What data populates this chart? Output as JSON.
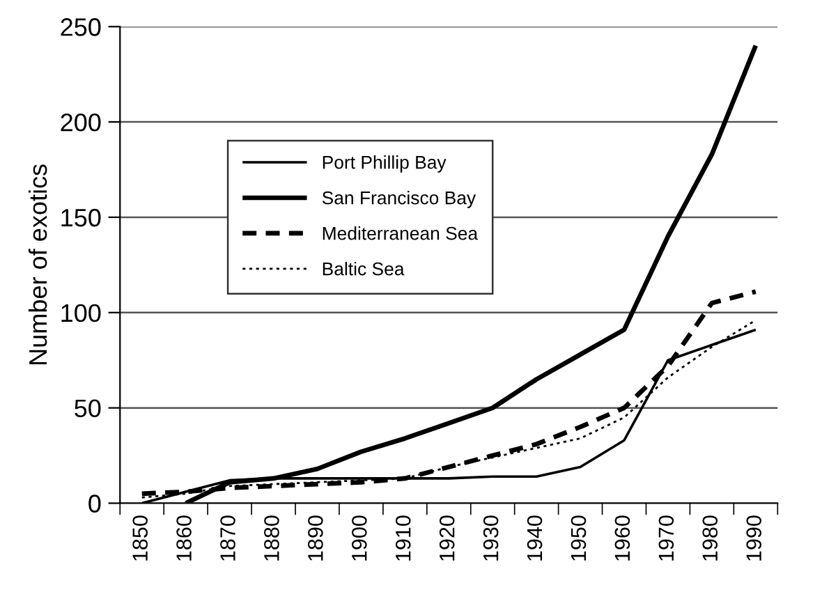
{
  "chart_data": {
    "type": "line",
    "ylabel": "Number of exotics",
    "categories": [
      "1850",
      "1860",
      "1870",
      "1880",
      "1890",
      "1900",
      "1910",
      "1920",
      "1930",
      "1940",
      "1950",
      "1960",
      "1970",
      "1980",
      "1990"
    ],
    "ylim": [
      0,
      250
    ],
    "yticks": [
      0,
      50,
      100,
      150,
      200,
      250
    ],
    "grid": "y",
    "legend": "top left",
    "marker": "none",
    "series": [
      {
        "name": "Port Phillip Bay",
        "color": "#000000",
        "line_style": "solid",
        "values": [
          0,
          6,
          12,
          13,
          13,
          13,
          13,
          13,
          14,
          14,
          19,
          33,
          75,
          83,
          91
        ]
      },
      {
        "name": "San Francisco Bay",
        "color": "#000000",
        "line_style": "solid",
        "values": [
          null,
          0,
          11,
          13,
          18,
          27,
          34,
          42,
          50,
          65,
          78,
          91,
          140,
          183,
          240
        ]
      },
      {
        "name": "Mediterranean Sea",
        "color": "#000000",
        "line_style": "dashed",
        "values": [
          5,
          6,
          8,
          9,
          10,
          11,
          13,
          19,
          25,
          31,
          40,
          50,
          72,
          105,
          111
        ]
      },
      {
        "name": "Baltic Sea",
        "color": "#000000",
        "line_style": "dotted",
        "values": [
          3,
          5,
          9,
          10,
          11,
          12,
          13,
          19,
          24,
          29,
          34,
          45,
          66,
          82,
          96
        ]
      }
    ]
  }
}
